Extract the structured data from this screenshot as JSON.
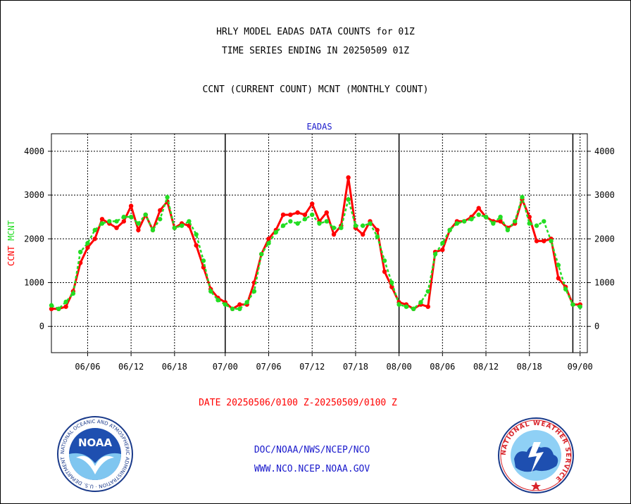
{
  "header": {
    "title_line1": "HRLY MODEL EADAS DATA COUNTS for 01Z",
    "title_line2": "TIME SERIES ENDING IN 20250509 01Z",
    "subtitle": "CCNT (CURRENT COUNT) MCNT (MONTHLY COUNT)"
  },
  "footer": {
    "date_range": "DATE 20250506/0100 Z-20250509/0100 Z",
    "line1": "DOC/NOAA/NWS/NCEP/NCO",
    "line2": "WWW.NCO.NCEP.NOAA.GOV"
  },
  "logos": {
    "noaa_text": "NOAA",
    "noaa_ring_text": "NATIONAL OCEANIC AND ATMOSPHERIC ADMINISTRATION · U.S. DEPARTMENT OF COMMERCE",
    "nws_ring_text": "NATIONAL WEATHER SERVICE"
  },
  "colors": {
    "ccnt": "#ff0000",
    "mcnt": "#22dd22",
    "title_blue": "#1a1acc"
  },
  "chart_data": {
    "type": "line",
    "title": "EADAS",
    "ylabel_parts": [
      {
        "text": "CCNT",
        "color": "#ff0000"
      },
      {
        "text": "MCNT",
        "color": "#22dd22"
      }
    ],
    "ylim": [
      -600,
      4400
    ],
    "yticks": [
      0,
      1000,
      2000,
      3000,
      4000
    ],
    "xlim": [
      0,
      74
    ],
    "xticks": [
      {
        "x": 5,
        "label": "06/06"
      },
      {
        "x": 11,
        "label": "06/12"
      },
      {
        "x": 17,
        "label": "06/18"
      },
      {
        "x": 24,
        "label": "07/00"
      },
      {
        "x": 30,
        "label": "07/06"
      },
      {
        "x": 36,
        "label": "07/12"
      },
      {
        "x": 42,
        "label": "07/18"
      },
      {
        "x": 48,
        "label": "08/00"
      },
      {
        "x": 54,
        "label": "08/06"
      },
      {
        "x": 60,
        "label": "08/12"
      },
      {
        "x": 66,
        "label": "08/18"
      },
      {
        "x": 73,
        "label": "09/00"
      }
    ],
    "day_boundaries": [
      24,
      48,
      72
    ],
    "grid": true,
    "series": [
      {
        "name": "CCNT",
        "color": "#ff0000",
        "values": [
          400,
          400,
          450,
          800,
          1450,
          1800,
          2000,
          2450,
          2350,
          2250,
          2400,
          2750,
          2200,
          2550,
          2200,
          2650,
          2850,
          2250,
          2350,
          2300,
          1850,
          1350,
          850,
          650,
          550,
          400,
          500,
          500,
          1000,
          1650,
          2000,
          2200,
          2550,
          2550,
          2600,
          2550,
          2800,
          2400,
          2600,
          2100,
          2300,
          3400,
          2250,
          2100,
          2400,
          2200,
          1250,
          900,
          550,
          500,
          400,
          500,
          450,
          1700,
          1750,
          2200,
          2400,
          2400,
          2500,
          2700,
          2500,
          2400,
          2400,
          2250,
          2350,
          2900,
          2500,
          1950,
          1950,
          2000,
          1100,
          900,
          500,
          500
        ]
      },
      {
        "name": "MCNT",
        "color": "#22dd22",
        "values": [
          480,
          400,
          560,
          750,
          1700,
          1900,
          2200,
          2350,
          2400,
          2400,
          2500,
          2500,
          2350,
          2550,
          2200,
          2450,
          2950,
          2250,
          2300,
          2400,
          2100,
          1500,
          800,
          600,
          500,
          400,
          400,
          550,
          800,
          1650,
          1900,
          2150,
          2300,
          2400,
          2350,
          2450,
          2550,
          2350,
          2400,
          2250,
          2250,
          2900,
          2300,
          2300,
          2350,
          2050,
          1500,
          1000,
          500,
          450,
          400,
          550,
          800,
          1650,
          1900,
          2200,
          2350,
          2400,
          2450,
          2550,
          2500,
          2350,
          2500,
          2200,
          2400,
          2950,
          2350,
          2300,
          2400,
          1950,
          1400,
          850,
          500,
          450
        ]
      }
    ]
  }
}
